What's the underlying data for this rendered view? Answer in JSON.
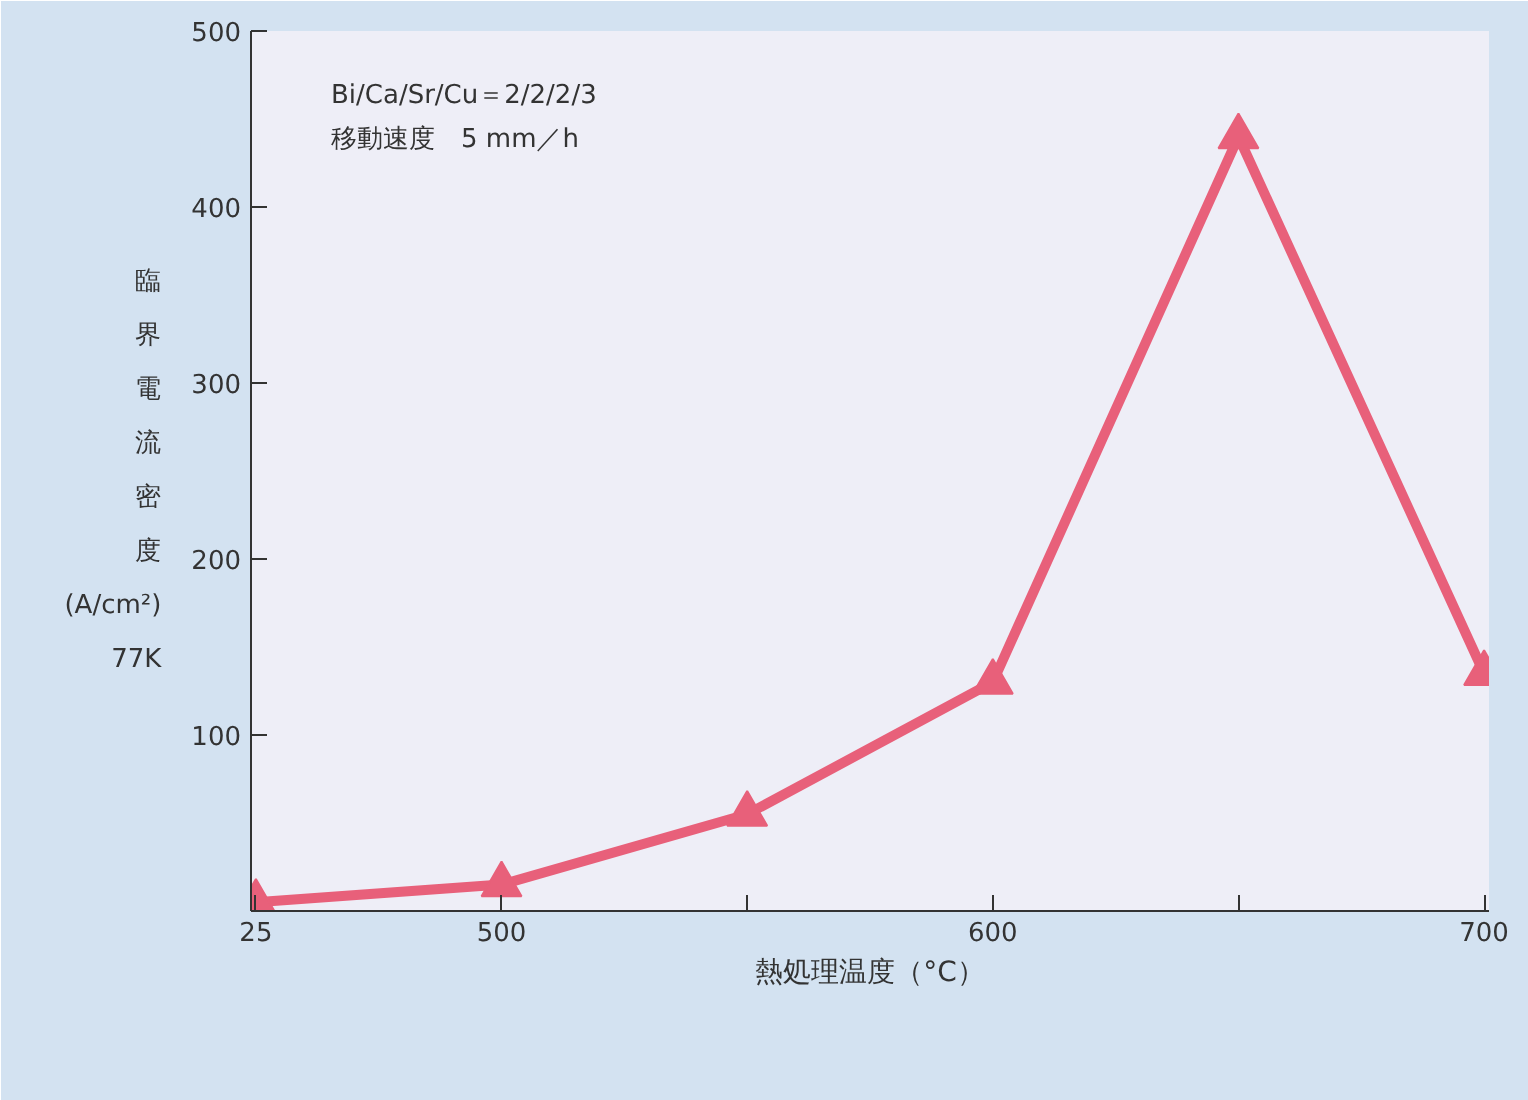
{
  "chart_data": {
    "type": "line",
    "xlabel": "熱処理温度（°C）",
    "ylabel": "臨界電流密度 (A/cm²) 77K",
    "categories": [
      "25",
      "500",
      null,
      "600",
      null,
      "700"
    ],
    "series": [
      {
        "color": "#e8607a",
        "values": [
          5,
          15,
          55,
          130,
          440,
          135
        ]
      }
    ],
    "ylim": [
      0,
      500
    ],
    "yticks": [
      100,
      200,
      300,
      400,
      500
    ],
    "marker": "triangle",
    "line_style": "solid",
    "grid": false,
    "annotations": [
      "Bi/Ca/Sr/Cu＝2/2/2/3",
      "移動速度　5 mm／h"
    ]
  }
}
